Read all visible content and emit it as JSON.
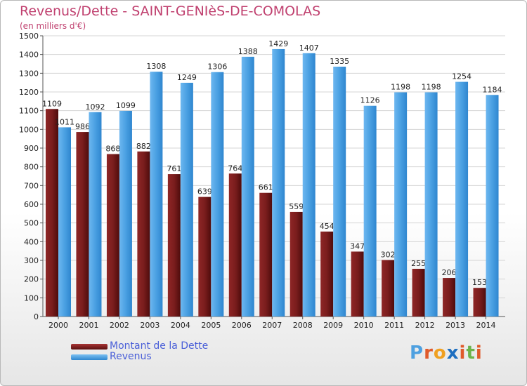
{
  "header": {
    "title": "Revenus/Dette - SAINT-GENIèS-DE-COMOLAS",
    "subtitle": "(en milliers d'€)"
  },
  "colors": {
    "title": "#c0406f",
    "legend_text": "#4a5fd8",
    "dette": "#7a1d1d",
    "revenus": "#4a9fe0",
    "grid": "#d4d4d4",
    "axis_text": "#222222"
  },
  "legend": {
    "items": [
      {
        "label": "Montant de la Dette",
        "color": "#7a1d1d"
      },
      {
        "label": "Revenus",
        "color": "#4a9fe0"
      }
    ]
  },
  "logo": {
    "text": "Proxiti",
    "letters": [
      "P",
      "r",
      "o",
      "x",
      "i",
      "t",
      "i"
    ]
  },
  "chart_data": {
    "type": "bar",
    "categories": [
      "2000",
      "2001",
      "2002",
      "2003",
      "2004",
      "2005",
      "2006",
      "2007",
      "2008",
      "2009",
      "2010",
      "2011",
      "2012",
      "2013",
      "2014"
    ],
    "series": [
      {
        "name": "Montant de la Dette",
        "values": [
          1109,
          986,
          868,
          882,
          761,
          639,
          764,
          661,
          559,
          454,
          347,
          302,
          255,
          206,
          153
        ]
      },
      {
        "name": "Revenus",
        "values": [
          1011,
          1092,
          1099,
          1308,
          1249,
          1306,
          1388,
          1429,
          1407,
          1335,
          1126,
          1198,
          1198,
          1254,
          1184
        ]
      }
    ],
    "title": "Revenus/Dette - SAINT-GENIèS-DE-COMOLAS",
    "subtitle": "(en milliers d'€)",
    "ylim": [
      0,
      1500
    ],
    "yticks": [
      0,
      100,
      200,
      300,
      400,
      500,
      600,
      700,
      800,
      900,
      1000,
      1100,
      1200,
      1300,
      1400,
      1500
    ],
    "grid": true,
    "legend_position": "bottom-left"
  }
}
